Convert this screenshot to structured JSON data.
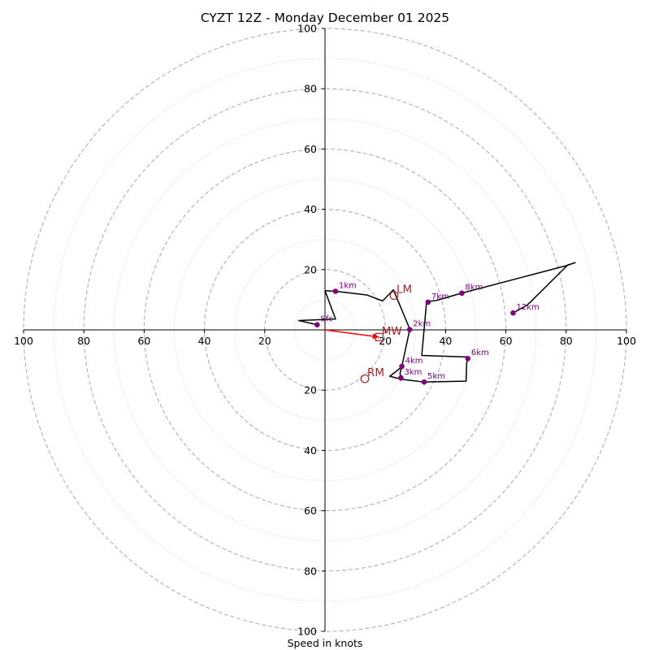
{
  "chart_data": {
    "type": "hodograph",
    "title": "CYZT 12Z - Monday December 01 2025",
    "xlabel": "Speed in knots",
    "rmax": 100,
    "ring_step": 20,
    "minor_ring_step": 10,
    "tick_labels_x": [
      "100",
      "80",
      "60",
      "40",
      "20",
      "20",
      "40",
      "60",
      "80",
      "100"
    ],
    "tick_labels_y": [
      "100",
      "80",
      "60",
      "40",
      "20",
      "20",
      "40",
      "60",
      "80",
      "100"
    ],
    "trace": [
      [
        0,
        13
      ],
      [
        3.5,
        12.8
      ],
      [
        13.8,
        11.6
      ],
      [
        19.1,
        9.6
      ],
      [
        22.7,
        13.3
      ],
      [
        28.2,
        0.1
      ],
      [
        28.1,
        0.1
      ],
      [
        25.5,
        -12.1
      ],
      [
        25.2,
        -12.5
      ],
      [
        21.5,
        -15.4
      ],
      [
        25.5,
        -16.4
      ],
      [
        32.9,
        -17.3
      ],
      [
        46.8,
        -17.0
      ],
      [
        47.0,
        -11.0
      ],
      [
        47.4,
        -9.0
      ],
      [
        32.1,
        -8.5
      ],
      [
        33.7,
        9.3
      ],
      [
        37.1,
        9.8
      ],
      [
        45.4,
        12.2
      ],
      [
        80.0,
        21.3
      ],
      [
        83.0,
        22.3
      ],
      [
        80.5,
        21.5
      ],
      [
        67.2,
        8.3
      ],
      [
        62.4,
        5.6
      ]
    ],
    "low_trace": [
      [
        0,
        13
      ],
      [
        3.5,
        3.6
      ],
      [
        -8.7,
        3.1
      ],
      [
        -2.6,
        1.7
      ]
    ],
    "link_trace": [
      [
        25.5,
        -12.1
      ],
      [
        24.9,
        -14.3
      ],
      [
        25.2,
        -16.7
      ],
      [
        24.9,
        -16.7
      ]
    ],
    "height_markers": [
      {
        "label": "Sfc",
        "u": -2.6,
        "v": 1.7
      },
      {
        "label": "1km",
        "u": 3.5,
        "v": 12.8
      },
      {
        "label": "2km",
        "u": 28.1,
        "v": 0.1
      },
      {
        "label": "3km",
        "u": 25.2,
        "v": -15.9
      },
      {
        "label": "4km",
        "u": 25.5,
        "v": -12.1
      },
      {
        "label": "5km",
        "u": 32.9,
        "v": -17.3
      },
      {
        "label": "6km",
        "u": 47.4,
        "v": -9.5
      },
      {
        "label": "7km",
        "u": 34.2,
        "v": 9.2
      },
      {
        "label": "8km",
        "u": 45.4,
        "v": 12.2
      },
      {
        "label": "12km",
        "u": 62.4,
        "v": 5.6
      }
    ],
    "motion_markers": [
      {
        "label": "LM",
        "u": 22.9,
        "v": 11.4,
        "symbol": "circle"
      },
      {
        "label": "RM",
        "u": 13.2,
        "v": -16.2,
        "symbol": "circle"
      },
      {
        "label": "MW",
        "u": 18.0,
        "v": -2.4,
        "symbol": "square"
      }
    ],
    "storm_motion_vector": {
      "u": 18.0,
      "v": -2.4
    },
    "colors": {
      "trace": "#000000",
      "height_marker": "#800080",
      "motion_marker": "#b22222",
      "storm_vector": "#ff0000",
      "major_ring": "#b0b0b0",
      "minor_ring": "#c8c8c8",
      "axis": "#000000"
    }
  }
}
